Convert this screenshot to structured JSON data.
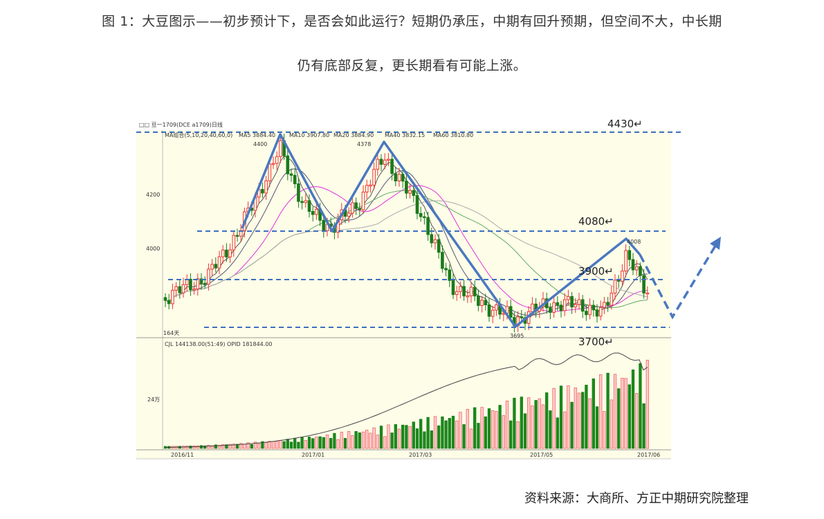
{
  "header": {
    "title_line1": "图 1：大豆图示——初步预计下，是否会如此运行？短期仍承压，中期有回升预期，但空间不大，中长期",
    "title_line2": "仍有底部反复，更长期看有可能上涨。"
  },
  "figure": {
    "chart_header": "□□ 豆一1709(DCE a1709)日线",
    "ma_legend": "MA组合(5,10,20,40,60,0)",
    "ma_values": [
      "MA5 3884.40",
      "MA10 3907.80",
      "MA20 3884.90",
      "MA40 3832.15",
      "MA60 3810.80"
    ],
    "levels": [
      "4430↵",
      "4080↵",
      "3900↵",
      "3700↵"
    ],
    "price_marks": [
      "4400",
      "4378",
      "4008",
      "3695"
    ],
    "y_ticks": [
      "4200",
      "4000"
    ],
    "days": "164天",
    "volume_header": "CJL  144138.00(51:49)  OPID  181844.00",
    "volume_tick": "24万",
    "dates": [
      "2016/11",
      "2017/01",
      "2017/03",
      "2017/05",
      "2017/06"
    ]
  },
  "source": "资料来源：大商所、方正中期研究院整理"
}
